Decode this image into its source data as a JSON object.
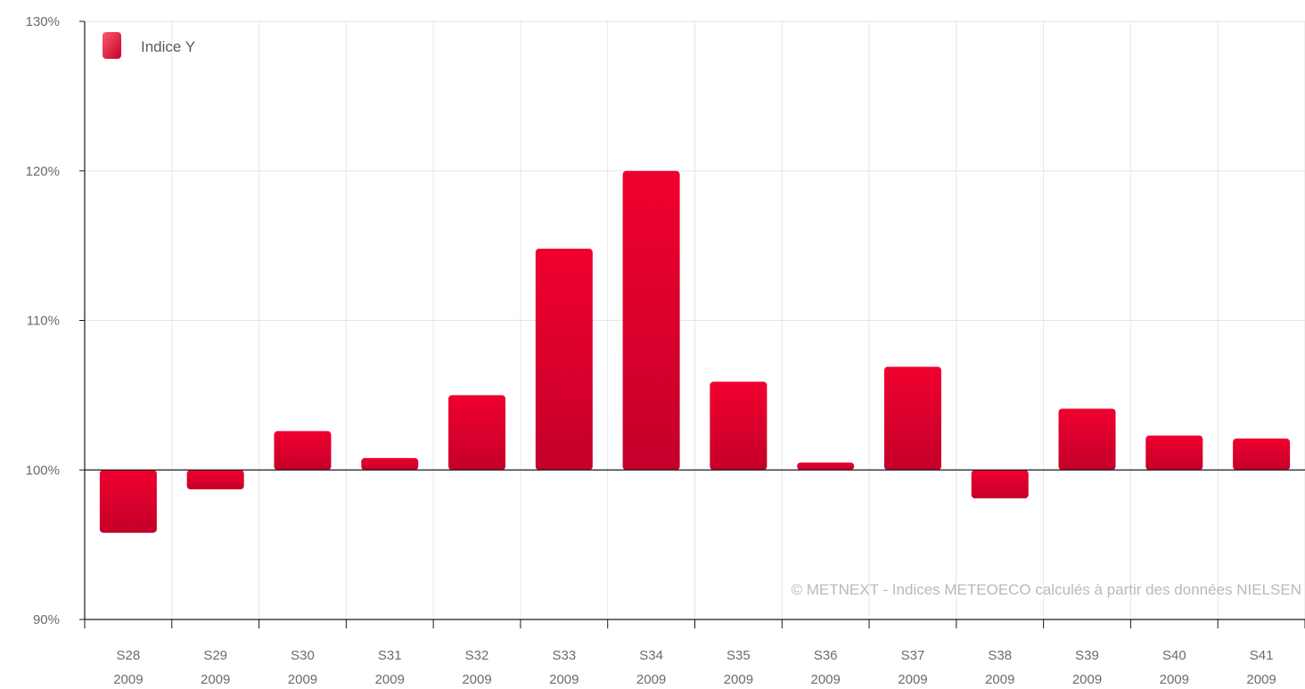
{
  "chart_data": {
    "type": "bar",
    "categories": [
      [
        "S28",
        "2009"
      ],
      [
        "S29",
        "2009"
      ],
      [
        "S30",
        "2009"
      ],
      [
        "S31",
        "2009"
      ],
      [
        "S32",
        "2009"
      ],
      [
        "S33",
        "2009"
      ],
      [
        "S34",
        "2009"
      ],
      [
        "S35",
        "2009"
      ],
      [
        "S36",
        "2009"
      ],
      [
        "S37",
        "2009"
      ],
      [
        "S38",
        "2009"
      ],
      [
        "S39",
        "2009"
      ],
      [
        "S40",
        "2009"
      ],
      [
        "S41",
        "2009"
      ]
    ],
    "series": [
      {
        "name": "Indice Y",
        "values": [
          95.8,
          98.7,
          102.6,
          100.8,
          105.0,
          114.8,
          120.0,
          105.9,
          100.5,
          106.9,
          98.1,
          104.1,
          102.3,
          102.1
        ]
      }
    ],
    "baseline": 100,
    "ylim": [
      90,
      130
    ],
    "yticks": [
      90,
      100,
      110,
      120,
      130
    ],
    "ytick_labels": [
      "90%",
      "100%",
      "110%",
      "120%",
      "130%"
    ],
    "title": "",
    "xlabel": "",
    "ylabel": "",
    "grid": true,
    "legend_position": "top-left",
    "colors": {
      "bar_top": "#f0002e",
      "bar_bottom": "#c4002a",
      "grid": "#e6e6e6",
      "axis": "#1a1a1a"
    },
    "credit": "© METNEXT  - Indices METEOECO calculés à partir des données NIELSEN"
  }
}
